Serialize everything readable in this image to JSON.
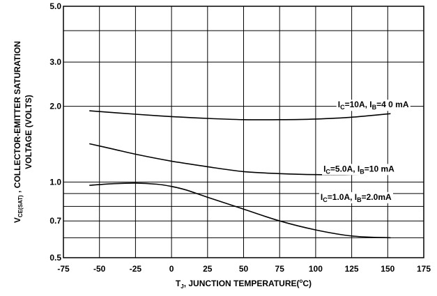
{
  "chart_data": {
    "type": "line",
    "title": "",
    "xlabel": {
      "pre": "T",
      "sub": "J",
      "mid": ", JUNCTION  TEMPERATURE(",
      "sup": "o",
      "post": "C)"
    },
    "ylabel": {
      "line1_pre": "V",
      "line1_sub": "CE(SAT)",
      "line1_post": " , COLLECTOR-EMITTER SATURATION",
      "line2": "VOLTAGE (VOLTS)"
    },
    "x_scale": "linear",
    "y_scale": "log",
    "xlim": [
      -75,
      175
    ],
    "ylim": [
      0.5,
      5.0
    ],
    "x_ticks": [
      -75,
      -50,
      -25,
      0,
      25,
      50,
      75,
      100,
      125,
      150,
      175
    ],
    "x_tick_labels": [
      "-75",
      "-50",
      "-25",
      "0",
      "25",
      "50",
      "75",
      "100",
      "125",
      "150",
      "175"
    ],
    "y_ticks": [
      0.5,
      0.7,
      1.0,
      2.0,
      3.0,
      5.0
    ],
    "y_tick_labels": [
      "0.5",
      "0.7",
      "1.0",
      "2.0",
      "3.0",
      "5.0"
    ],
    "y_gridlines": [
      0.5,
      0.6,
      0.7,
      0.8,
      0.9,
      1.0,
      2.0,
      3.0,
      4.0,
      5.0
    ],
    "grid": true,
    "legend": "none",
    "series": [
      {
        "x": [
          -57,
          -25,
          0,
          25,
          50,
          75,
          100,
          125,
          152
        ],
        "y": [
          1.92,
          1.86,
          1.82,
          1.79,
          1.77,
          1.77,
          1.78,
          1.81,
          1.87
        ]
      },
      {
        "x": [
          -57,
          -40,
          -25,
          0,
          25,
          50,
          75,
          100,
          125,
          152
        ],
        "y": [
          1.42,
          1.35,
          1.29,
          1.21,
          1.15,
          1.1,
          1.08,
          1.07,
          1.07,
          1.09
        ]
      },
      {
        "x": [
          -57,
          -40,
          -25,
          -10,
          0,
          10,
          25,
          50,
          75,
          100,
          125,
          152
        ],
        "y": [
          0.97,
          0.985,
          0.99,
          0.98,
          0.96,
          0.93,
          0.87,
          0.78,
          0.7,
          0.645,
          0.61,
          0.6
        ]
      }
    ],
    "annotations": [
      {
        "series_index": 0,
        "at": [
          140,
          1.98
        ],
        "pre": "I",
        "sub1": "C",
        "mid": "=10A, I",
        "sub2": "B",
        "post": "=4 0 mA"
      },
      {
        "series_index": 1,
        "at": [
          130,
          1.1
        ],
        "pre": "I",
        "sub1": "C",
        "mid": "=5.0A, I",
        "sub2": "B",
        "post": "=10 mA"
      },
      {
        "series_index": 2,
        "at": [
          128,
          0.85
        ],
        "pre": "I",
        "sub1": "C",
        "mid": "=1.0A, I",
        "sub2": "B",
        "post": "=2.0mA"
      }
    ]
  }
}
